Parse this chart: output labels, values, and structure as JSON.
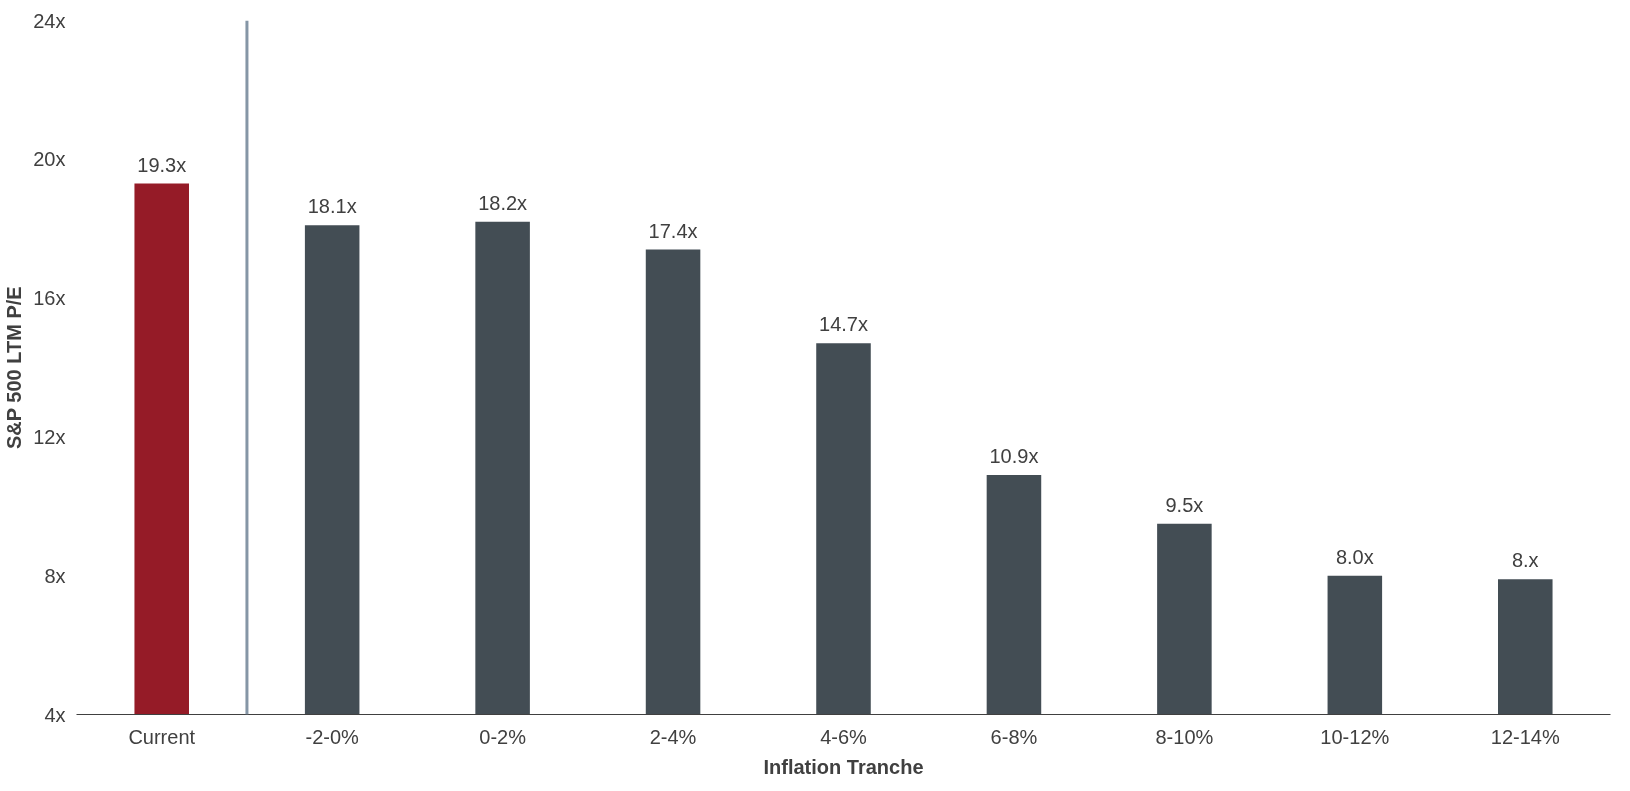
{
  "chart_data": {
    "type": "bar",
    "xlabel": "Inflation Tranche",
    "ylabel": "S&P 500 LTM P/E",
    "categories": [
      "Current",
      "-2-0%",
      "0-2%",
      "2-4%",
      "4-6%",
      "6-8%",
      "8-10%",
      "10-12%",
      "12-14%"
    ],
    "values": [
      19.3,
      18.1,
      18.2,
      17.4,
      14.7,
      10.9,
      9.5,
      8.0,
      7.9
    ],
    "colors": [
      "#951b27",
      "#434d54",
      "#434d54",
      "#434d54",
      "#434d54",
      "#434d54",
      "#434d54",
      "#434d54",
      "#434d54"
    ],
    "value_labels": [
      "19.3x",
      "18.1x",
      "18.2x",
      "17.4x",
      "14.7x",
      "10.9x",
      "9.5x",
      "8.0x",
      "8.x"
    ],
    "ylim": [
      4,
      24
    ],
    "yticks": [
      {
        "value": 4,
        "label": "4x"
      },
      {
        "value": 8,
        "label": "8x"
      },
      {
        "value": 12,
        "label": "12x"
      },
      {
        "value": 16,
        "label": "16x"
      },
      {
        "value": 20,
        "label": "20x"
      },
      {
        "value": 24,
        "label": "24x"
      }
    ],
    "grid": false
  }
}
